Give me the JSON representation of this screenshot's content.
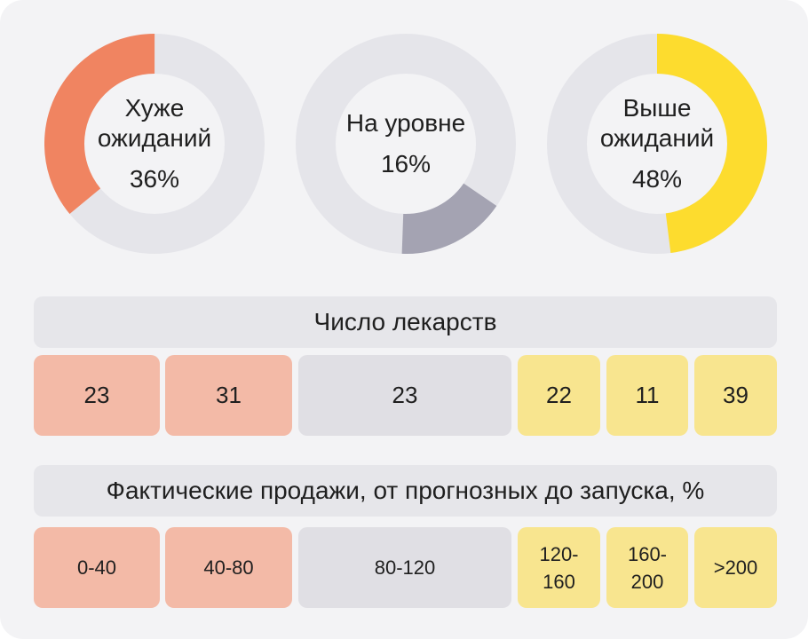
{
  "chart_data": {
    "type": "pie",
    "slices": [
      {
        "label": "Хуже ожиданий",
        "value": 36,
        "display": "36%",
        "color": "#f08461"
      },
      {
        "label": "На уровне",
        "value": 16,
        "display": "16%",
        "color": "#a4a3b2"
      },
      {
        "label": "Выше ожиданий",
        "value": 48,
        "display": "48%",
        "color": "#fddc2e"
      }
    ],
    "track_color": "#e5e5ea",
    "table": {
      "count_header": "Число лекарств",
      "counts": [
        {
          "value": "23",
          "group": "worse"
        },
        {
          "value": "31",
          "group": "worse"
        },
        {
          "value": "23",
          "group": "level"
        },
        {
          "value": "22",
          "group": "better"
        },
        {
          "value": "11",
          "group": "better"
        },
        {
          "value": "39",
          "group": "better"
        }
      ],
      "range_header": "Фактические продажи, от прогнозных до запуска, %",
      "ranges": [
        {
          "value": "0-40",
          "group": "worse"
        },
        {
          "value": "40-80",
          "group": "worse"
        },
        {
          "value": "80-120",
          "group": "level"
        },
        {
          "value": "120-\n160",
          "group": "better"
        },
        {
          "value": "160-\n200",
          "group": "better"
        },
        {
          "value": ">200",
          "group": "better"
        }
      ]
    }
  }
}
